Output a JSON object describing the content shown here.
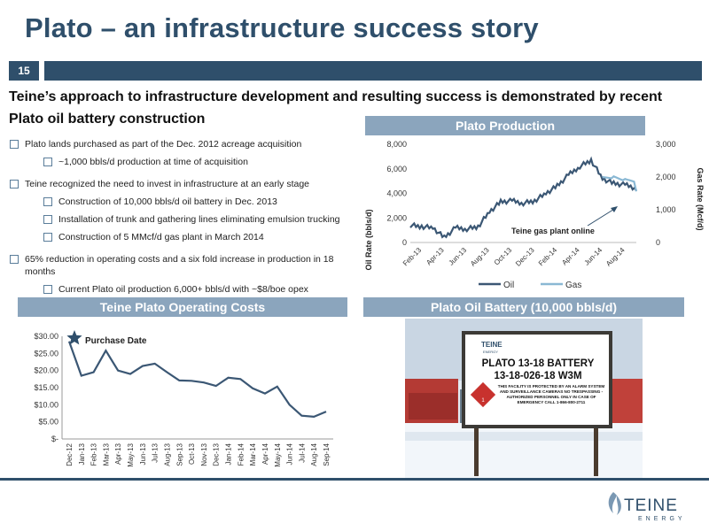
{
  "slide": {
    "title": "Plato – an infrastructure success story",
    "number": "15",
    "subtitle": "Teine’s approach to infrastructure development and resulting success is demonstrated by recent Plato oil battery construction"
  },
  "bullets": [
    {
      "text": "Plato lands purchased as part of the Dec. 2012 acreage acquisition",
      "sub": [
        "~1,000 bbls/d production at time of acquisition"
      ]
    },
    {
      "text": "Teine recognized the need to invest in infrastructure at an early stage",
      "sub": [
        "Construction of 10,000 bbls/d oil battery in Dec. 2013",
        "Installation of trunk and gathering lines eliminating emulsion trucking",
        "Construction of 5 MMcf/d gas plant in March 2014"
      ]
    },
    {
      "text": "65% reduction in operating costs and a six fold increase in production in 18 months",
      "sub": [
        "Current Plato oil production 6,000+ bbls/d with ~$8/boe opex"
      ]
    }
  ],
  "panels": {
    "production": "Plato Production",
    "costs": "Teine Plato Operating Costs",
    "battery": "Plato Oil Battery (10,000 bbls/d)"
  },
  "photo": {
    "sign_brand": "TEINE",
    "sign_brand_sub": "ENERGY",
    "sign_line1": "PLATO 13-18 BATTERY",
    "sign_line2": "13-18-026-18 W3M",
    "sign_warning": "THIS FACILITY IS PROTECTED BY AN ALARM SYSTEM AND SURVEILLANCE CAMERAS NO TRESPASSING - AUTHORIZED PERSONNEL ONLY IN CASE OF EMERGENCY CALL 1-866-800-2711",
    "hazard_number": "1"
  },
  "logo": {
    "name": "TEINE",
    "sub": "ENERGY"
  },
  "colors": {
    "accent": "#2f4f6b",
    "panel": "#8ba5bd",
    "oil": "#3b5774",
    "gas": "#8ab8d4"
  },
  "chart_data": [
    {
      "type": "line",
      "title": "",
      "ylabel": "Oil Rate (bbls/d)",
      "y2label": "Gas Rate (Mcf/d)",
      "ylim": [
        0,
        8000
      ],
      "y2lim": [
        0,
        3000
      ],
      "yticks": [
        "0",
        "2,000",
        "4,000",
        "6,000",
        "8,000"
      ],
      "y2ticks": [
        "0",
        "1,000",
        "2,000",
        "3,000"
      ],
      "xticks": [
        "Feb-13",
        "Apr-13",
        "Jun-13",
        "Aug-13",
        "Oct-13",
        "Dec-13",
        "Feb-14",
        "Apr-14",
        "Jun-14",
        "Aug-14"
      ],
      "legend": "bottom",
      "annotation": "Teine gas plant online",
      "x": [
        "Jan-13",
        "Feb-13",
        "Mar-13",
        "Apr-13",
        "May-13",
        "Jun-13",
        "Jul-13",
        "Aug-13",
        "Sep-13",
        "Oct-13",
        "Nov-13",
        "Dec-13",
        "Jan-14",
        "Feb-14",
        "Mar-14",
        "Apr-14",
        "May-14",
        "Jun-14",
        "Jul-14",
        "Aug-14",
        "Sep-14"
      ],
      "series": [
        {
          "name": "Oil",
          "axis": "left",
          "values": [
            1400,
            1300,
            1200,
            400,
            1200,
            1100,
            1300,
            2500,
            3300,
            3400,
            3200,
            3400,
            4000,
            4600,
            5500,
            6200,
            6700,
            5200,
            4800,
            4700,
            4400
          ]
        },
        {
          "name": "Gas",
          "axis": "right",
          "values": [
            null,
            null,
            null,
            null,
            null,
            null,
            null,
            null,
            null,
            null,
            null,
            null,
            null,
            null,
            null,
            null,
            null,
            2000,
            1950,
            1800,
            1700
          ]
        }
      ]
    },
    {
      "type": "line",
      "title": "",
      "ylim": [
        0,
        30
      ],
      "yticks": [
        "$-",
        "$5.00",
        "$10.00",
        "$15.00",
        "$20.00",
        "$25.00",
        "$30.00"
      ],
      "annotation": "Purchase Date",
      "categories": [
        "Dec-12",
        "Jan-13",
        "Feb-13",
        "Mar-13",
        "Apr-13",
        "May-13",
        "Jun-13",
        "Jul-13",
        "Aug-13",
        "Sep-13",
        "Oct-13",
        "Nov-13",
        "Dec-13",
        "Jan-14",
        "Feb-14",
        "Mar-14",
        "Apr-14",
        "May-14",
        "Jun-14",
        "Jul-14",
        "Aug-14",
        "Sep-14"
      ],
      "series": [
        {
          "name": "Operating Cost",
          "values": [
            28.5,
            18.5,
            19.5,
            25.8,
            20.0,
            19.0,
            21.3,
            22.0,
            19.5,
            17.1,
            17.0,
            16.5,
            15.5,
            17.9,
            17.5,
            14.8,
            13.3,
            15.3,
            10.0,
            6.8,
            6.5,
            8.0
          ]
        }
      ]
    }
  ]
}
